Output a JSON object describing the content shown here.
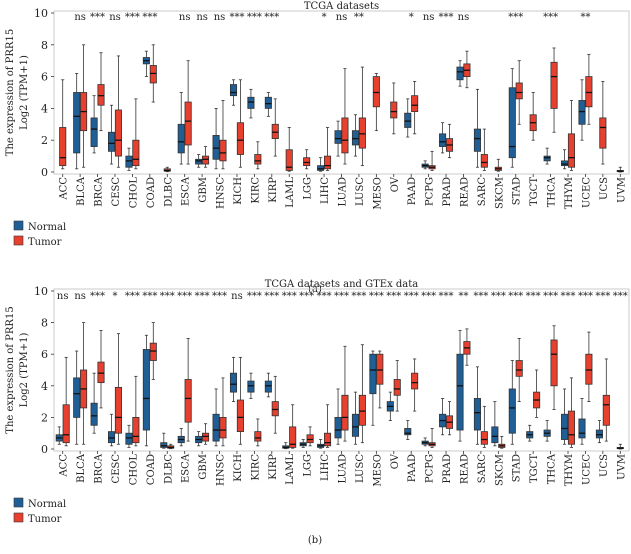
{
  "colors": {
    "normal": "#1f5f96",
    "tumor": "#e8402f",
    "axis": "#333333",
    "frame": "#bfbfbf"
  },
  "legend": {
    "normal_label": "Normal",
    "tumor_label": "Tumor"
  },
  "chart_data": [
    {
      "type": "boxplot",
      "panel_label": "(a)",
      "title": "TCGA datasets",
      "ylabel_line1": "The expression of PRR15",
      "ylabel_line2": "Log2 (TPM+1)",
      "ylim": [
        0,
        10
      ],
      "yticks": [
        "0",
        "2",
        "4",
        "6",
        "8",
        "10"
      ],
      "legend_position": "bottom-left",
      "categories": [
        "ACC",
        "BLCA",
        "BRCA",
        "CESC",
        "CHOL",
        "COAD",
        "DLBC",
        "ESCA",
        "GBM",
        "HNSC",
        "KICH",
        "KIRC",
        "KIRP",
        "LAML",
        "LGG",
        "LIHC",
        "LUAD",
        "LUSC",
        "MESO",
        "OV",
        "PAAD",
        "PCPG",
        "PRAD",
        "READ",
        "SARC",
        "SKCM",
        "STAD",
        "TGCT",
        "THCA",
        "THYM",
        "UCEC",
        "UCS",
        "UVM"
      ],
      "significance": [
        "",
        "ns",
        "***",
        "ns",
        "***",
        "***",
        "",
        "ns",
        "ns",
        "ns",
        "***",
        "***",
        "***",
        "",
        "",
        "*",
        "ns",
        "**",
        "",
        "",
        "*",
        "ns",
        "***",
        "ns",
        "",
        "",
        "***",
        "",
        "***",
        "",
        "**",
        "",
        ""
      ],
      "series": [
        {
          "name": "Normal",
          "boxes": [
            null,
            [
              0.2,
              1.2,
              3.5,
              5.0,
              6.2
            ],
            [
              1.2,
              1.6,
              2.7,
              3.4,
              4.8
            ],
            [
              0.5,
              1.3,
              1.8,
              2.5,
              4.2
            ],
            [
              0.1,
              0.3,
              0.7,
              1.0,
              1.5
            ],
            [
              6.0,
              6.8,
              7.0,
              7.2,
              7.6
            ],
            null,
            [
              0.5,
              1.2,
              1.9,
              3.0,
              5.0
            ],
            [
              0.3,
              0.5,
              0.7,
              0.8,
              1.1
            ],
            [
              0.2,
              0.8,
              1.5,
              2.3,
              4.0
            ],
            [
              4.2,
              4.8,
              5.0,
              5.5,
              5.8
            ],
            [
              3.4,
              4.0,
              4.4,
              4.7,
              5.2
            ],
            [
              3.5,
              4.0,
              4.3,
              4.7,
              5.0
            ],
            null,
            null,
            [
              0.05,
              0.1,
              0.2,
              0.4,
              0.9
            ],
            [
              1.0,
              1.8,
              2.1,
              2.6,
              3.2
            ],
            [
              1.0,
              1.7,
              2.1,
              2.6,
              3.6
            ],
            null,
            null,
            [
              2.2,
              2.8,
              3.2,
              3.7,
              4.6
            ],
            [
              0.2,
              0.3,
              0.4,
              0.5,
              0.7
            ],
            [
              1.2,
              1.6,
              1.9,
              2.4,
              3.1
            ],
            [
              5.4,
              5.8,
              6.3,
              6.6,
              7.0
            ],
            [
              0.3,
              1.3,
              2.1,
              2.7,
              5.2
            ],
            null,
            [
              0.3,
              0.9,
              1.6,
              5.3,
              6.5
            ],
            null,
            [
              0.5,
              0.7,
              0.9,
              1.0,
              1.5
            ],
            [
              0.2,
              0.4,
              0.5,
              0.7,
              1.4
            ],
            [
              2.0,
              3.0,
              3.8,
              4.5,
              5.8
            ],
            null,
            null
          ]
        },
        {
          "name": "Tumor",
          "boxes": [
            [
              0.2,
              0.4,
              0.9,
              2.8,
              5.8
            ],
            [
              0.3,
              2.6,
              3.8,
              5.0,
              8.0
            ],
            [
              2.6,
              4.2,
              4.8,
              5.5,
              7.5
            ],
            [
              0.3,
              1.0,
              2.0,
              3.9,
              7.3
            ],
            [
              0.2,
              0.4,
              0.8,
              2.0,
              4.6
            ],
            [
              4.4,
              5.6,
              6.2,
              6.7,
              8.0
            ],
            [
              0.02,
              0.05,
              0.1,
              0.2,
              0.3
            ],
            [
              0.5,
              1.7,
              3.2,
              4.4,
              7.0
            ],
            [
              0.3,
              0.5,
              0.8,
              1.0,
              1.6
            ],
            [
              0.2,
              0.7,
              1.2,
              2.0,
              4.5
            ],
            [
              0.3,
              1.1,
              2.0,
              3.1,
              5.8
            ],
            [
              0.2,
              0.5,
              0.7,
              1.1,
              1.9
            ],
            [
              1.0,
              2.1,
              2.5,
              3.0,
              4.6
            ],
            [
              0.05,
              0.1,
              0.3,
              1.4,
              2.8
            ],
            [
              0.2,
              0.4,
              0.6,
              0.9,
              1.4
            ],
            [
              0.1,
              0.2,
              0.4,
              1.0,
              2.8
            ],
            [
              0.5,
              1.2,
              2.0,
              3.4,
              6.5
            ],
            [
              0.4,
              1.5,
              2.4,
              3.4,
              6.6
            ],
            [
              2.6,
              4.1,
              5.0,
              6.0,
              6.2
            ],
            [
              2.4,
              3.4,
              3.8,
              4.4,
              5.6
            ],
            [
              2.4,
              3.8,
              4.2,
              4.8,
              5.7
            ],
            [
              0.1,
              0.2,
              0.3,
              0.4,
              1.3
            ],
            [
              0.9,
              1.3,
              1.7,
              2.1,
              3.0
            ],
            [
              5.3,
              6.0,
              6.4,
              6.8,
              7.6
            ],
            [
              0.1,
              0.3,
              0.6,
              1.1,
              2.7
            ],
            [
              0.05,
              0.1,
              0.2,
              0.3,
              0.8
            ],
            [
              3.0,
              4.6,
              5.0,
              5.6,
              7.0
            ],
            [
              2.0,
              2.6,
              3.1,
              3.6,
              5.0
            ],
            [
              2.5,
              4.0,
              6.0,
              6.9,
              7.8
            ],
            [
              0.1,
              0.3,
              0.9,
              2.4,
              4.5
            ],
            [
              3.0,
              4.1,
              5.0,
              6.0,
              7.4
            ],
            [
              0.5,
              1.5,
              2.8,
              3.4,
              5.7
            ],
            [
              0.0,
              0.02,
              0.05,
              0.1,
              0.3
            ]
          ]
        }
      ]
    },
    {
      "type": "boxplot",
      "panel_label": "(b)",
      "title": "TCGA datasets and GTEx data",
      "ylabel_line1": "The expression of PRR15",
      "ylabel_line2": "Log2 (TPM+1)",
      "ylim": [
        0,
        10
      ],
      "yticks": [
        "0",
        "2",
        "4",
        "6",
        "8",
        "10"
      ],
      "legend_position": "bottom-left",
      "categories": [
        "ACC",
        "BLCA",
        "BRCA",
        "CESC",
        "CHOL",
        "COAD",
        "DLBC",
        "ESCA",
        "GBM",
        "HNSC",
        "KICH",
        "KIRC",
        "KIRP",
        "LAML",
        "LGG",
        "LIHC",
        "LUAD",
        "LUSC",
        "MESO",
        "OV",
        "PAAD",
        "PCPG",
        "PRAD",
        "READ",
        "SARC",
        "SKCM",
        "STAD",
        "TGCT",
        "THCA",
        "THYM",
        "UCEC",
        "UCS",
        "UVM"
      ],
      "significance": [
        "ns",
        "ns",
        "***",
        "*",
        "***",
        "***",
        "***",
        "***",
        "***",
        "***",
        "ns",
        "***",
        "***",
        "***",
        "***",
        "***",
        "***",
        "***",
        "***",
        "***",
        "***",
        "***",
        "***",
        "**",
        "***",
        "***",
        "***",
        "***",
        "***",
        "***",
        "***",
        "***",
        "***"
      ],
      "series": [
        {
          "name": "Normal",
          "boxes": [
            [
              0.3,
              0.5,
              0.7,
              0.9,
              1.4
            ],
            [
              0.3,
              2.0,
              3.5,
              4.5,
              6.2
            ],
            [
              1.0,
              1.5,
              2.1,
              2.9,
              4.8
            ],
            [
              0.2,
              0.4,
              0.7,
              1.1,
              2.2
            ],
            [
              0.1,
              0.3,
              0.7,
              1.0,
              1.5
            ],
            [
              0.2,
              1.2,
              3.2,
              6.3,
              7.2
            ],
            [
              0.05,
              0.1,
              0.2,
              0.4,
              1.0
            ],
            [
              0.2,
              0.4,
              0.6,
              0.8,
              1.3
            ],
            [
              0.2,
              0.4,
              0.6,
              0.8,
              1.1
            ],
            [
              0.2,
              0.5,
              1.2,
              2.2,
              3.8
            ],
            [
              3.0,
              3.6,
              4.1,
              4.8,
              5.8
            ],
            [
              3.2,
              3.6,
              4.0,
              4.3,
              4.8
            ],
            [
              3.3,
              3.6,
              4.0,
              4.3,
              4.8
            ],
            [
              0.02,
              0.05,
              0.1,
              0.2,
              0.4
            ],
            [
              0.1,
              0.2,
              0.3,
              0.4,
              0.6
            ],
            [
              0.05,
              0.1,
              0.2,
              0.3,
              0.6
            ],
            [
              0.3,
              0.7,
              1.2,
              2.0,
              3.8
            ],
            [
              0.3,
              0.8,
              1.4,
              2.2,
              3.6
            ],
            [
              1.5,
              3.5,
              5.0,
              6.0,
              6.2
            ],
            [
              1.8,
              2.4,
              2.7,
              3.0,
              3.6
            ],
            [
              0.6,
              0.9,
              1.0,
              1.3,
              1.8
            ],
            [
              0.2,
              0.3,
              0.4,
              0.5,
              0.7
            ],
            [
              0.9,
              1.4,
              1.8,
              2.2,
              3.2
            ],
            [
              0.5,
              1.2,
              4.0,
              6.0,
              7.5
            ],
            [
              0.3,
              1.2,
              2.3,
              3.2,
              5.2
            ],
            [
              0.2,
              0.4,
              0.8,
              1.4,
              3.0
            ],
            [
              0.3,
              1.0,
              2.6,
              3.8,
              5.6
            ],
            [
              0.5,
              0.7,
              0.9,
              1.1,
              1.5
            ],
            [
              0.5,
              0.8,
              1.0,
              1.2,
              1.8
            ],
            [
              0.3,
              0.6,
              1.3,
              2.2,
              3.8
            ],
            [
              0.3,
              0.7,
              1.0,
              1.9,
              3.2
            ],
            [
              0.4,
              0.7,
              0.9,
              1.2,
              1.8
            ],
            null
          ]
        },
        {
          "name": "Tumor",
          "boxes": [
            [
              0.2,
              0.4,
              0.9,
              2.8,
              5.8
            ],
            [
              0.3,
              2.6,
              3.8,
              5.0,
              8.0
            ],
            [
              2.6,
              4.2,
              4.8,
              5.5,
              7.5
            ],
            [
              0.3,
              1.0,
              2.0,
              3.9,
              7.3
            ],
            [
              0.2,
              0.4,
              0.8,
              2.0,
              4.6
            ],
            [
              4.4,
              5.6,
              6.2,
              6.7,
              8.0
            ],
            [
              0.02,
              0.05,
              0.1,
              0.2,
              0.3
            ],
            [
              0.5,
              1.7,
              3.2,
              4.4,
              7.0
            ],
            [
              0.3,
              0.5,
              0.8,
              1.0,
              1.6
            ],
            [
              0.2,
              0.7,
              1.2,
              2.0,
              4.5
            ],
            [
              0.3,
              1.1,
              2.0,
              3.1,
              5.8
            ],
            [
              0.2,
              0.5,
              0.7,
              1.1,
              1.9
            ],
            [
              1.0,
              2.1,
              2.5,
              3.0,
              4.6
            ],
            [
              0.05,
              0.1,
              0.3,
              1.4,
              2.8
            ],
            [
              0.2,
              0.4,
              0.6,
              0.9,
              1.4
            ],
            [
              0.1,
              0.2,
              0.4,
              1.0,
              2.8
            ],
            [
              0.5,
              1.2,
              2.0,
              3.4,
              6.5
            ],
            [
              0.4,
              1.5,
              2.4,
              3.4,
              6.6
            ],
            [
              2.6,
              4.1,
              5.0,
              6.0,
              6.2
            ],
            [
              2.4,
              3.4,
              3.8,
              4.4,
              5.6
            ],
            [
              2.4,
              3.8,
              4.2,
              4.8,
              5.7
            ],
            [
              0.1,
              0.2,
              0.3,
              0.4,
              1.3
            ],
            [
              0.9,
              1.3,
              1.7,
              2.1,
              3.0
            ],
            [
              5.3,
              6.0,
              6.4,
              6.8,
              7.6
            ],
            [
              0.1,
              0.3,
              0.6,
              1.1,
              2.7
            ],
            [
              0.05,
              0.1,
              0.2,
              0.3,
              0.8
            ],
            [
              3.0,
              4.6,
              5.0,
              5.6,
              7.0
            ],
            [
              2.0,
              2.6,
              3.1,
              3.6,
              5.0
            ],
            [
              2.5,
              4.0,
              6.0,
              6.9,
              7.8
            ],
            [
              0.1,
              0.3,
              0.9,
              2.4,
              4.5
            ],
            [
              3.0,
              4.1,
              5.0,
              6.0,
              7.4
            ],
            [
              0.5,
              1.5,
              2.8,
              3.4,
              5.7
            ],
            [
              0.0,
              0.02,
              0.05,
              0.1,
              0.3
            ]
          ]
        }
      ]
    }
  ]
}
